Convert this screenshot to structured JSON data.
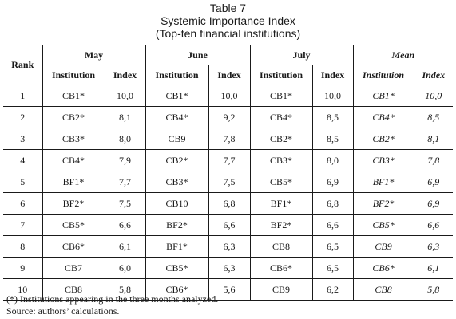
{
  "caption": {
    "table_label": "Table 7",
    "title": "Systemic Importance Index",
    "subtitle": "(Top-ten financial institutions)"
  },
  "header": {
    "rank": "Rank",
    "groups": [
      "May",
      "June",
      "July",
      "Mean"
    ],
    "sub": [
      "Institution",
      "Index"
    ]
  },
  "rows": [
    {
      "rank": "1",
      "may": [
        "CB1*",
        "10,0"
      ],
      "june": [
        "CB1*",
        "10,0"
      ],
      "july": [
        "CB1*",
        "10,0"
      ],
      "mean": [
        "CB1*",
        "10,0"
      ]
    },
    {
      "rank": "2",
      "may": [
        "CB2*",
        "8,1"
      ],
      "june": [
        "CB4*",
        "9,2"
      ],
      "july": [
        "CB4*",
        "8,5"
      ],
      "mean": [
        "CB4*",
        "8,5"
      ]
    },
    {
      "rank": "3",
      "may": [
        "CB3*",
        "8,0"
      ],
      "june": [
        "CB9",
        "7,8"
      ],
      "july": [
        "CB2*",
        "8,5"
      ],
      "mean": [
        "CB2*",
        "8,1"
      ]
    },
    {
      "rank": "4",
      "may": [
        "CB4*",
        "7,9"
      ],
      "june": [
        "CB2*",
        "7,7"
      ],
      "july": [
        "CB3*",
        "8,0"
      ],
      "mean": [
        "CB3*",
        "7,8"
      ]
    },
    {
      "rank": "5",
      "may": [
        "BF1*",
        "7,7"
      ],
      "june": [
        "CB3*",
        "7,5"
      ],
      "july": [
        "CB5*",
        "6,9"
      ],
      "mean": [
        "BF1*",
        "6,9"
      ]
    },
    {
      "rank": "6",
      "may": [
        "BF2*",
        "7,5"
      ],
      "june": [
        "CB10",
        "6,8"
      ],
      "july": [
        "BF1*",
        "6,8"
      ],
      "mean": [
        "BF2*",
        "6,9"
      ]
    },
    {
      "rank": "7",
      "may": [
        "CB5*",
        "6,6"
      ],
      "june": [
        "BF2*",
        "6,6"
      ],
      "july": [
        "BF2*",
        "6,6"
      ],
      "mean": [
        "CB5*",
        "6,6"
      ]
    },
    {
      "rank": "8",
      "may": [
        "CB6*",
        "6,1"
      ],
      "june": [
        "BF1*",
        "6,3"
      ],
      "july": [
        "CB8",
        "6,5"
      ],
      "mean": [
        "CB9",
        "6,3"
      ]
    },
    {
      "rank": "9",
      "may": [
        "CB7",
        "6,0"
      ],
      "june": [
        "CB5*",
        "6,3"
      ],
      "july": [
        "CB6*",
        "6,5"
      ],
      "mean": [
        "CB6*",
        "6,1"
      ]
    },
    {
      "rank": "10",
      "may": [
        "CB8",
        "5,8"
      ],
      "june": [
        "CB6*",
        "5,6"
      ],
      "july": [
        "CB9",
        "6,2"
      ],
      "mean": [
        "CB8",
        "5,8"
      ]
    }
  ],
  "footnotes": {
    "note": "(*) Institutions appearing in the three months analyzed.",
    "source": "Source: authors’ calculations."
  }
}
